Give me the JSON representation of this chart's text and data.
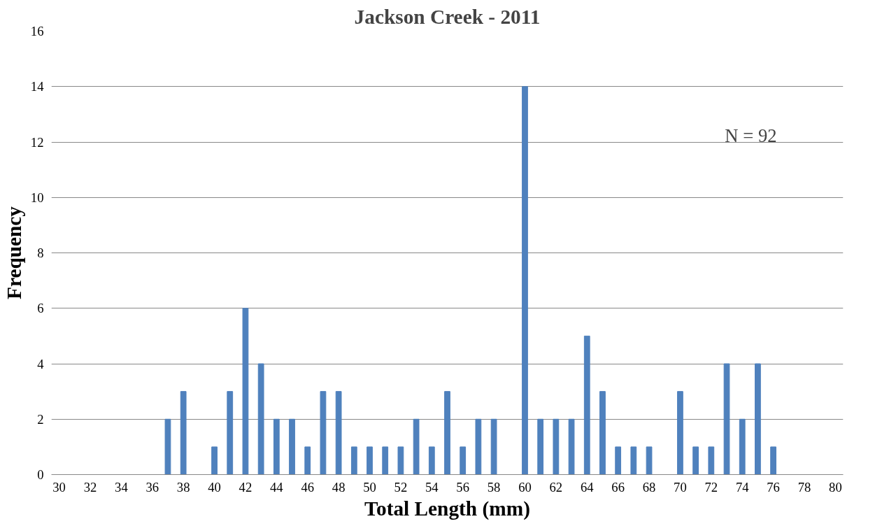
{
  "chart_data": {
    "type": "bar",
    "title": "Jackson Creek - 2011",
    "xlabel": "Total Length (mm)",
    "ylabel": "Frequency",
    "categories": [
      "30",
      null,
      "32",
      null,
      "34",
      null,
      "36",
      null,
      "38",
      null,
      "40",
      null,
      "42",
      null,
      "44",
      null,
      "46",
      null,
      "48",
      null,
      "50",
      null,
      "52",
      null,
      "54",
      null,
      "56",
      null,
      "58",
      null,
      "60",
      null,
      "62",
      null,
      "64",
      null,
      "66",
      null,
      "68",
      null,
      "70",
      null,
      "72",
      null,
      "74",
      null,
      "76",
      null,
      "78",
      null,
      "80"
    ],
    "values": [
      0,
      0,
      0,
      0,
      0,
      0,
      0,
      2,
      3,
      0,
      1,
      3,
      6,
      4,
      2,
      2,
      1,
      3,
      3,
      1,
      1,
      1,
      1,
      2,
      1,
      3,
      1,
      2,
      2,
      0,
      14,
      2,
      2,
      2,
      5,
      3,
      1,
      1,
      1,
      0,
      3,
      1,
      1,
      4,
      2,
      4,
      1,
      0,
      0,
      0,
      0
    ],
    "color": "#4f81bd",
    "ylim": [
      0,
      16
    ],
    "yticks": [
      0,
      2,
      4,
      6,
      8,
      10,
      12,
      14,
      16
    ],
    "grid": "y",
    "annotations": [
      "N = 92"
    ]
  }
}
